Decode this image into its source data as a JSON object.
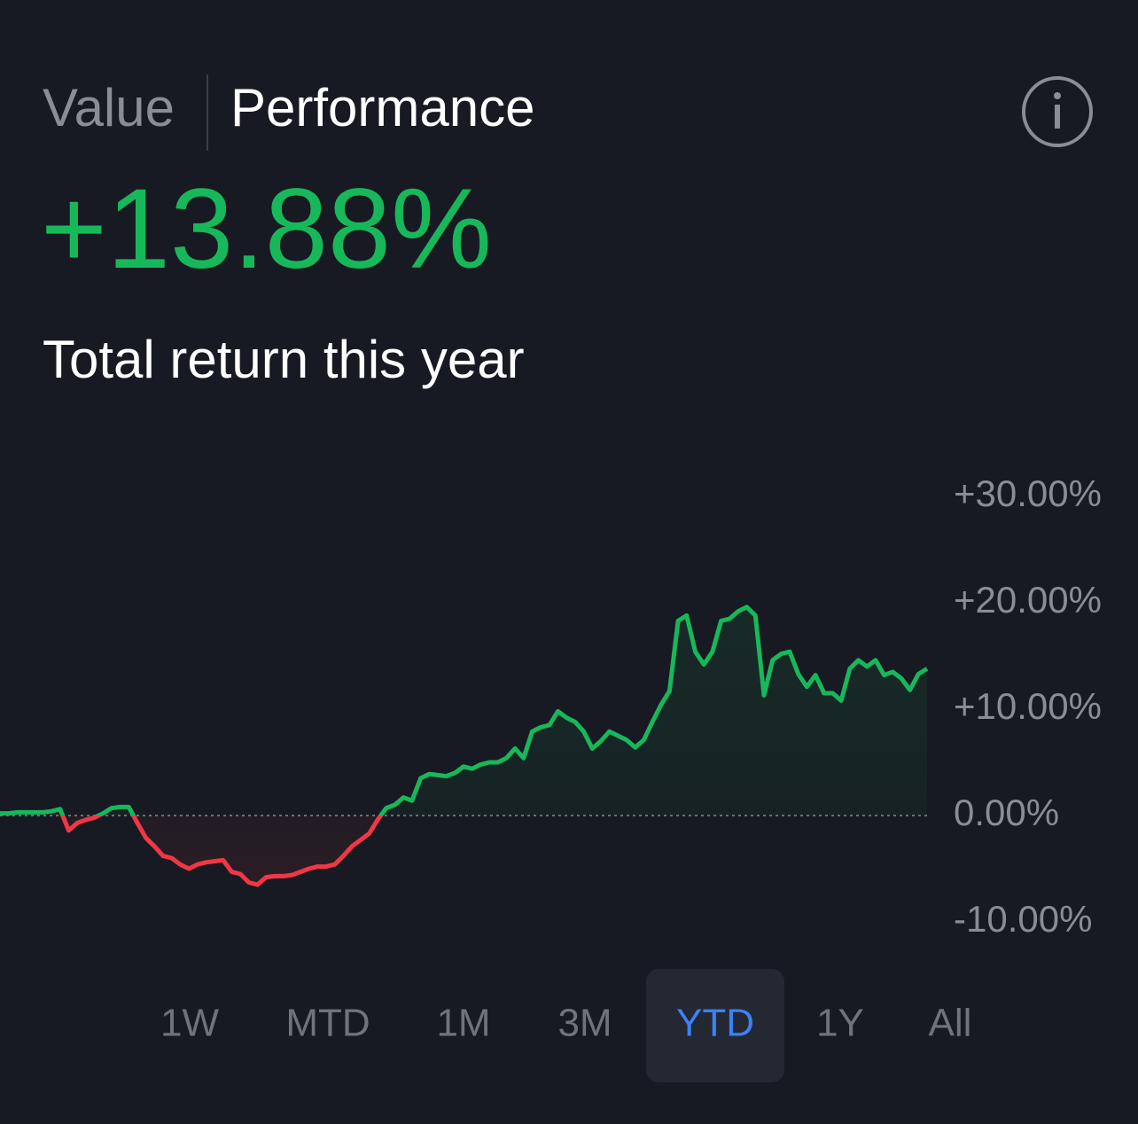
{
  "tabs": [
    "Value",
    "Performance"
  ],
  "active_tab": 1,
  "total_return": "+13.88%",
  "total_return_label": "Total return this year",
  "ranges": [
    "1W",
    "MTD",
    "1M",
    "3M",
    "YTD",
    "1Y",
    "All"
  ],
  "active_range": 4,
  "chart_data": {
    "type": "line",
    "up_color": "#17b85a",
    "down_color": "#f23645",
    "ylim": [
      -13,
      31
    ],
    "yticks": [
      {
        "value": 30,
        "label": "+30.00%"
      },
      {
        "value": 20,
        "label": "+20.00%"
      },
      {
        "value": 10,
        "label": "+10.00%"
      },
      {
        "value": 0,
        "label": "0.00%"
      },
      {
        "value": -10,
        "label": "-10.00%"
      }
    ],
    "zero_line": true,
    "values": [
      0.2,
      0.2,
      0.3,
      0.3,
      0.3,
      0.3,
      0.4,
      0.6,
      -1.4,
      -0.7,
      -0.4,
      -0.2,
      0.2,
      0.7,
      0.8,
      0.8,
      -0.7,
      -2.1,
      -2.9,
      -3.8,
      -4.0,
      -4.6,
      -5.0,
      -4.6,
      -4.4,
      -4.3,
      -4.2,
      -5.3,
      -5.5,
      -6.3,
      -6.5,
      -5.8,
      -5.7,
      -5.7,
      -5.6,
      -5.3,
      -5.0,
      -4.8,
      -4.8,
      -4.6,
      -3.8,
      -2.9,
      -2.3,
      -1.7,
      -0.4,
      0.7,
      1.0,
      1.7,
      1.4,
      3.5,
      3.9,
      3.8,
      3.7,
      4.0,
      4.6,
      4.4,
      4.8,
      5.0,
      5.0,
      5.4,
      6.3,
      5.4,
      7.9,
      8.3,
      8.5,
      9.8,
      9.2,
      8.8,
      7.9,
      6.3,
      7.0,
      7.9,
      7.5,
      7.1,
      6.4,
      7.1,
      8.8,
      10.4,
      11.7,
      18.3,
      18.8,
      15.4,
      14.2,
      15.4,
      18.3,
      18.5,
      19.2,
      19.6,
      18.8,
      11.3,
      14.6,
      15.2,
      15.4,
      13.3,
      12.1,
      13.2,
      11.5,
      11.5,
      10.8,
      13.8,
      14.6,
      14.0,
      14.6,
      13.2,
      13.5,
      12.9,
      11.8,
      13.3,
      13.8
    ]
  }
}
